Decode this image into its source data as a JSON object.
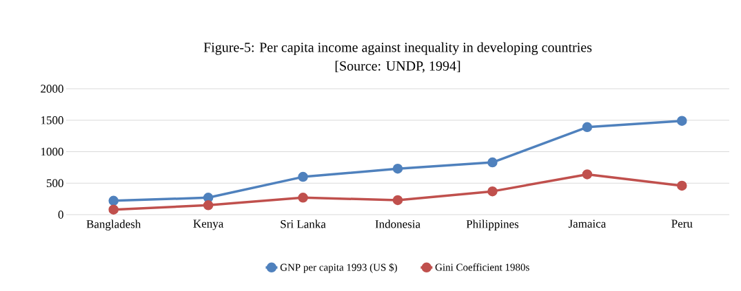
{
  "chart_data": {
    "type": "line",
    "title": "Figure-5: Per capita income against inequality in developing countries",
    "subtitle": "[Source: UNDP, 1994]",
    "categories": [
      "Bangladesh",
      "Kenya",
      "Sri Lanka",
      "Indonesia",
      "Philippines",
      "Jamaica",
      "Peru"
    ],
    "series": [
      {
        "name": "GNP per capita 1993 (US $)",
        "color": "#4f81bd",
        "values": [
          220,
          270,
          600,
          730,
          830,
          1390,
          1490
        ]
      },
      {
        "name": "Gini Coefficient 1980s",
        "color": "#c0504d",
        "values": [
          80,
          150,
          270,
          230,
          370,
          640,
          460
        ]
      }
    ],
    "ylim": [
      0,
      2000
    ],
    "yticks": [
      0,
      500,
      1000,
      1500,
      2000
    ],
    "grid": "y",
    "legend": "bottom",
    "marker": "circle",
    "line_style": "solid"
  }
}
